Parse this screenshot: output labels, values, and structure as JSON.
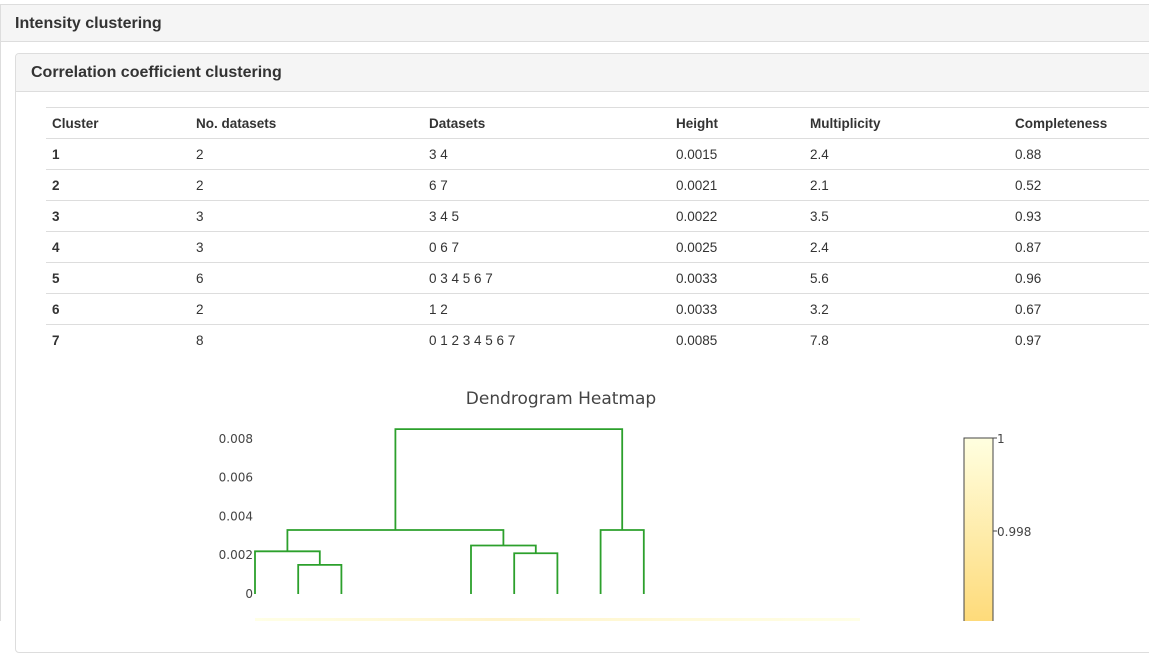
{
  "outer_panel": {
    "title": "Intensity clustering"
  },
  "inner_panel": {
    "title": "Correlation coefficient clustering"
  },
  "table": {
    "headers": [
      "Cluster",
      "No. datasets",
      "Datasets",
      "Height",
      "Multiplicity",
      "Completeness"
    ],
    "rows": [
      [
        "1",
        "2",
        "3 4",
        "0.0015",
        "2.4",
        "0.88"
      ],
      [
        "2",
        "2",
        "6 7",
        "0.0021",
        "2.1",
        "0.52"
      ],
      [
        "3",
        "3",
        "3 4 5",
        "0.0022",
        "3.5",
        "0.93"
      ],
      [
        "4",
        "3",
        "0 6 7",
        "0.0025",
        "2.4",
        "0.87"
      ],
      [
        "5",
        "6",
        "0 3 4 5 6 7",
        "0.0033",
        "5.6",
        "0.96"
      ],
      [
        "6",
        "2",
        "1 2",
        "0.0033",
        "3.2",
        "0.67"
      ],
      [
        "7",
        "8",
        "0 1 2 3 4 5 6 7",
        "0.0085",
        "7.8",
        "0.97"
      ]
    ]
  },
  "chart_data": {
    "type": "dendrogram",
    "title": "Dendrogram Heatmap",
    "yticks": [
      "0.008",
      "0.006",
      "0.004",
      "0.002",
      "0"
    ],
    "ytick_values": [
      0.008,
      0.006,
      0.004,
      0.002,
      0
    ],
    "ylim": [
      0,
      0.0085
    ],
    "leaf_count": 8,
    "line_color": "#2ca02c",
    "links": [
      {
        "x1": 1,
        "x2": 2,
        "height": 0.0015
      },
      {
        "x1": 6,
        "x2": 7,
        "height": 0.0021
      },
      {
        "x1": 0,
        "x2": 1.5,
        "height": 0.0022
      },
      {
        "x1": 5,
        "x2": 6.5,
        "height": 0.0025
      },
      {
        "x1": 0.75,
        "x2": 5.75,
        "height": 0.0033
      },
      {
        "x1": 8,
        "x2": 9,
        "height": 0.0033
      },
      {
        "x1": 3.25,
        "x2": 8.5,
        "height": 0.0085
      }
    ],
    "colorbar": {
      "ticks": [
        "1",
        "0.998"
      ],
      "tick_values": [
        1,
        0.998
      ],
      "color_high": "#ffffe0",
      "color_low": "#fed976"
    }
  }
}
